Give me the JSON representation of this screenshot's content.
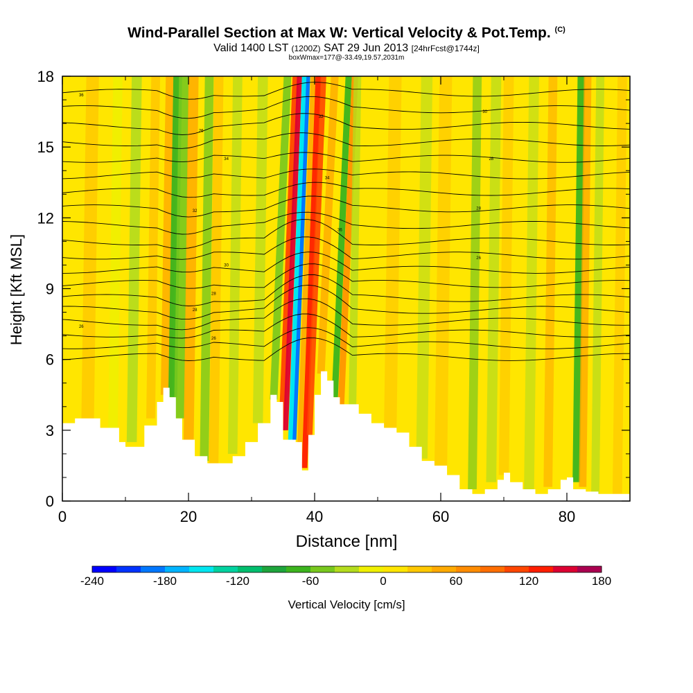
{
  "chart": {
    "title_main": "Wind-Parallel Section at Max W: Vertical Velocity & Pot.Temp.",
    "title_mark": "(C)",
    "subtitle_a": "Valid 1400 LST",
    "subtitle_b": "(1200Z)",
    "subtitle_c": "SAT 29 Jun 2013",
    "subtitle_d": "[24hrFcst@1744z]",
    "subtitle2": "boxWmax=177@-33.49,19.57,2031m",
    "xlabel": "Distance [nm]",
    "ylabel": "Height [Kft MSL]",
    "colorbar_label": "Vertical Velocity [cm/s]"
  },
  "chart_data": {
    "type": "heatmap",
    "title": "Wind-Parallel Section at Max W: Vertical Velocity & Pot.Temp.",
    "xlabel": "Distance [nm]",
    "ylabel": "Height [Kft MSL]",
    "xlim": [
      0,
      90
    ],
    "ylim": [
      0,
      18
    ],
    "xticks": [
      0,
      20,
      40,
      60,
      80
    ],
    "yticks": [
      0,
      3,
      6,
      9,
      12,
      15,
      18
    ],
    "colorbar": {
      "label": "Vertical Velocity [cm/s]",
      "range": [
        -240,
        180
      ],
      "ticks": [
        -240,
        -180,
        -120,
        -60,
        0,
        60,
        120,
        180
      ],
      "colors": [
        "#0000ff",
        "#0033ff",
        "#0077ff",
        "#00b4ff",
        "#00e6f0",
        "#00d2a0",
        "#00be6e",
        "#1ea53c",
        "#3cb41e",
        "#78c81e",
        "#b4dc1e",
        "#f0f000",
        "#ffe600",
        "#ffc800",
        "#ffaa00",
        "#ff8c00",
        "#ff6e00",
        "#ff4600",
        "#ff1e00",
        "#dc0032",
        "#aa0050"
      ]
    },
    "terrain_height_kft": {
      "x": [
        0,
        2,
        6,
        9,
        10,
        11,
        13,
        15,
        16,
        17,
        18,
        19,
        21,
        23,
        25,
        27,
        29,
        31,
        33,
        34,
        35,
        36,
        37,
        38,
        39,
        40,
        41,
        42,
        43,
        44,
        45,
        47,
        49,
        51,
        53,
        55,
        57,
        59,
        61,
        63,
        65,
        67,
        69,
        70,
        71,
        73,
        75,
        77,
        79,
        80,
        81,
        83,
        85,
        87,
        90
      ],
      "y": [
        3.3,
        3.5,
        3.1,
        2.5,
        2.3,
        2.3,
        3.2,
        4.2,
        4.8,
        4.4,
        3.5,
        2.6,
        1.9,
        1.6,
        1.6,
        1.9,
        2.5,
        3.3,
        4.5,
        4.2,
        2.6,
        2.6,
        2.5,
        1.3,
        2.8,
        4.5,
        5.5,
        5.1,
        4.4,
        4.1,
        4.1,
        3.7,
        3.3,
        3.1,
        2.9,
        2.3,
        1.7,
        1.5,
        1.1,
        0.5,
        0.3,
        0.5,
        0.9,
        1.2,
        0.8,
        0.5,
        0.3,
        0.5,
        0.9,
        1.0,
        0.5,
        0.4,
        0.3,
        0.3,
        0.3
      ]
    },
    "theta_contour_labels": [
      "36",
      "26",
      "34",
      "32",
      "30",
      "28",
      "28",
      "26",
      "26",
      "36",
      "34",
      "32",
      "30",
      "28",
      "28",
      "26"
    ]
  }
}
